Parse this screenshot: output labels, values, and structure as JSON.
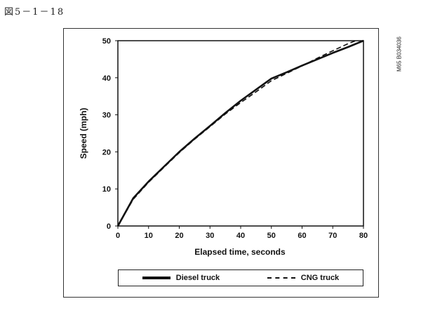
{
  "figure_label": "図5－1－18",
  "side_code": "M65 B034036",
  "chart_data": {
    "type": "line",
    "xlabel": "Elapsed time, seconds",
    "ylabel": "Speed (mph)",
    "xlim": [
      0,
      80
    ],
    "ylim": [
      0,
      50
    ],
    "xticks": [
      0,
      10,
      20,
      30,
      40,
      50,
      60,
      70,
      80
    ],
    "yticks": [
      0,
      10,
      20,
      30,
      40,
      50
    ],
    "grid": false,
    "legend_position": "bottom",
    "series": [
      {
        "name": "Diesel truck",
        "style": "solid",
        "x": [
          0,
          5,
          10,
          15,
          20,
          25,
          30,
          35,
          40,
          45,
          50,
          55,
          60,
          65,
          70,
          75,
          80
        ],
        "y": [
          0,
          7.5,
          12,
          16,
          20,
          23.6,
          27,
          30.5,
          33.8,
          36.8,
          39.8,
          41.5,
          43.3,
          45,
          46.7,
          48.3,
          50
        ]
      },
      {
        "name": "CNG truck",
        "style": "dashed",
        "x": [
          0,
          5,
          10,
          15,
          20,
          25,
          30,
          35,
          40,
          45,
          50,
          55,
          60,
          65,
          70,
          75,
          77.5
        ],
        "y": [
          0,
          7.2,
          11.8,
          15.8,
          19.8,
          23.4,
          26.8,
          30.2,
          33.3,
          36.2,
          39.2,
          41.2,
          43.2,
          45.3,
          47.3,
          49.2,
          50
        ]
      }
    ]
  }
}
